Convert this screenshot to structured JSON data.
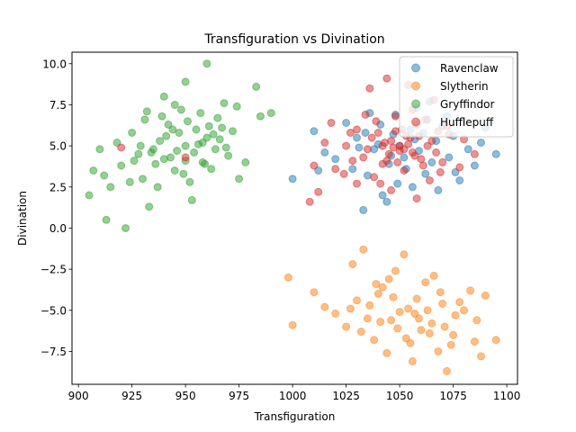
{
  "chart_data": {
    "type": "scatter",
    "title": "Transfiguration vs Divination",
    "xlabel": "Transfiguration",
    "ylabel": "Divination",
    "xlim": [
      897,
      1105
    ],
    "ylim": [
      -9.5,
      10.7
    ],
    "xticks": [
      900,
      925,
      950,
      975,
      1000,
      1025,
      1050,
      1075,
      1100
    ],
    "yticks": [
      -7.5,
      -5.0,
      -2.5,
      0.0,
      2.5,
      5.0,
      7.5,
      10.0
    ],
    "xtick_labels": [
      "900",
      "925",
      "950",
      "975",
      "1000",
      "1025",
      "1050",
      "1075",
      "1100"
    ],
    "ytick_labels": [
      "−7.5",
      "−5.0",
      "−2.5",
      "0.0",
      "2.5",
      "5.0",
      "7.5",
      "10.0"
    ],
    "grid": false,
    "legend_position": "top-right",
    "point_alpha": 0.5,
    "series": [
      {
        "name": "Ravenclaw",
        "color": "#1f77b4",
        "points": [
          [
            1040,
            5.1
          ],
          [
            1052,
            4.3
          ],
          [
            1061,
            5.8
          ],
          [
            1035,
            3.2
          ],
          [
            1070,
            6.2
          ],
          [
            1048,
            6.9
          ],
          [
            1056,
            2.5
          ],
          [
            1082,
            4.8
          ],
          [
            1030,
            5.5
          ],
          [
            1045,
            3.9
          ],
          [
            1065,
            4.0
          ],
          [
            1075,
            5.6
          ],
          [
            1090,
            6.1
          ],
          [
            1015,
            4.6
          ],
          [
            1025,
            6.4
          ],
          [
            1058,
            7.3
          ],
          [
            1068,
            2.3
          ],
          [
            1042,
            2.0
          ],
          [
            1095,
            4.5
          ],
          [
            1000,
            3.0
          ],
          [
            1033,
            1.1
          ],
          [
            1085,
            3.8
          ],
          [
            1010,
            5.9
          ],
          [
            1050,
            5.0
          ],
          [
            1055,
            6.0
          ],
          [
            1062,
            3.3
          ],
          [
            1038,
            4.8
          ],
          [
            1072,
            6.8
          ],
          [
            1047,
            5.7
          ],
          [
            1028,
            3.6
          ],
          [
            1088,
            5.2
          ],
          [
            1036,
            7.0
          ],
          [
            1064,
            7.7
          ],
          [
            1078,
            2.9
          ],
          [
            1020,
            4.2
          ],
          [
            1044,
            1.6
          ],
          [
            1059,
            4.7
          ],
          [
            1067,
            5.3
          ],
          [
            1053,
            3.6
          ],
          [
            1041,
            6.3
          ],
          [
            1073,
            4.3
          ],
          [
            1049,
            2.7
          ],
          [
            1031,
            4.9
          ],
          [
            1057,
            5.4
          ],
          [
            1080,
            6.5
          ],
          [
            1012,
            3.5
          ],
          [
            1046,
            4.4
          ],
          [
            1063,
            6.6
          ],
          [
            1034,
            5.8
          ],
          [
            1076,
            3.4
          ]
        ]
      },
      {
        "name": "Slytherin",
        "color": "#ff7f0e",
        "points": [
          [
            1050,
            -5.1
          ],
          [
            1040,
            -4.0
          ],
          [
            1060,
            -6.2
          ],
          [
            1035,
            -5.5
          ],
          [
            1070,
            -4.6
          ],
          [
            1045,
            -3.1
          ],
          [
            1055,
            -7.0
          ],
          [
            1065,
            -5.8
          ],
          [
            1030,
            -4.4
          ],
          [
            1075,
            -6.5
          ],
          [
            1080,
            -5.0
          ],
          [
            1025,
            -6.0
          ],
          [
            1048,
            -2.6
          ],
          [
            1058,
            -4.3
          ],
          [
            1068,
            -7.5
          ],
          [
            1038,
            -6.8
          ],
          [
            1042,
            -3.6
          ],
          [
            1062,
            -3.3
          ],
          [
            1072,
            -8.7
          ],
          [
            1085,
            -6.9
          ],
          [
            1090,
            -4.1
          ],
          [
            1020,
            -5.2
          ],
          [
            1010,
            -3.9
          ],
          [
            1000,
            -5.9
          ],
          [
            998,
            -3.0
          ],
          [
            1033,
            -1.3
          ],
          [
            1028,
            -2.2
          ],
          [
            1052,
            -1.6
          ],
          [
            1088,
            -7.8
          ],
          [
            1095,
            -6.8
          ],
          [
            1015,
            -4.8
          ],
          [
            1046,
            -5.6
          ],
          [
            1054,
            -4.9
          ],
          [
            1064,
            -6.4
          ],
          [
            1036,
            -4.7
          ],
          [
            1076,
            -5.3
          ],
          [
            1083,
            -3.8
          ],
          [
            1044,
            -7.6
          ],
          [
            1056,
            -8.1
          ],
          [
            1066,
            -2.9
          ],
          [
            1032,
            -6.3
          ],
          [
            1059,
            -5.5
          ],
          [
            1047,
            -4.2
          ],
          [
            1071,
            -6.0
          ],
          [
            1039,
            -3.4
          ],
          [
            1063,
            -5.0
          ],
          [
            1053,
            -6.7
          ],
          [
            1078,
            -4.5
          ],
          [
            1027,
            -4.9
          ],
          [
            1041,
            -5.7
          ],
          [
            1069,
            -3.9
          ],
          [
            1057,
            -5.2
          ],
          [
            1049,
            -6.1
          ],
          [
            1074,
            -7.1
          ],
          [
            1086,
            -5.6
          ]
        ]
      },
      {
        "name": "Gryffindor",
        "color": "#2ca02c",
        "points": [
          [
            950,
            5.0
          ],
          [
            940,
            4.2
          ],
          [
            955,
            6.0
          ],
          [
            945,
            3.5
          ],
          [
            960,
            5.5
          ],
          [
            935,
            4.8
          ],
          [
            965,
            6.7
          ],
          [
            930,
            3.0
          ],
          [
            970,
            4.4
          ],
          [
            925,
            5.8
          ],
          [
            948,
            7.2
          ],
          [
            952,
            2.8
          ],
          [
            958,
            4.0
          ],
          [
            942,
            6.3
          ],
          [
            962,
            3.6
          ],
          [
            938,
            5.3
          ],
          [
            968,
            7.6
          ],
          [
            928,
            4.5
          ],
          [
            972,
            5.9
          ],
          [
            920,
            3.8
          ],
          [
            915,
            2.5
          ],
          [
            910,
            4.8
          ],
          [
            907,
            3.5
          ],
          [
            905,
            2.0
          ],
          [
            913,
            0.5
          ],
          [
            922,
            0.0
          ],
          [
            933,
            1.3
          ],
          [
            960,
            10.0
          ],
          [
            950,
            8.9
          ],
          [
            940,
            8.0
          ],
          [
            983,
            8.6
          ],
          [
            990,
            7.0
          ],
          [
            985,
            6.8
          ],
          [
            978,
            4.0
          ],
          [
            975,
            3.0
          ],
          [
            953,
            1.7
          ],
          [
            946,
            4.7
          ],
          [
            956,
            5.1
          ],
          [
            944,
            6.0
          ],
          [
            964,
            4.8
          ],
          [
            936,
            3.9
          ],
          [
            966,
            5.4
          ],
          [
            931,
            6.6
          ],
          [
            974,
            7.4
          ],
          [
            926,
            4.1
          ],
          [
            949,
            3.3
          ],
          [
            957,
            7.0
          ],
          [
            941,
            5.6
          ],
          [
            961,
            6.2
          ],
          [
            937,
            2.5
          ],
          [
            918,
            5.2
          ],
          [
            912,
            3.2
          ],
          [
            932,
            7.1
          ],
          [
            947,
            5.8
          ],
          [
            954,
            4.6
          ],
          [
            943,
            4.3
          ],
          [
            959,
            3.9
          ],
          [
            939,
            6.8
          ],
          [
            967,
            6.1
          ],
          [
            929,
            5.0
          ],
          [
            951,
            6.5
          ],
          [
            963,
            5.7
          ],
          [
            934,
            4.6
          ],
          [
            969,
            4.9
          ],
          [
            924,
            2.8
          ],
          [
            945,
            7.5
          ],
          [
            958,
            5.2
          ],
          [
            950,
            4.1
          ]
        ]
      },
      {
        "name": "Hufflepuff",
        "color": "#d62728",
        "points": [
          [
            1050,
            5.0
          ],
          [
            1045,
            4.5
          ],
          [
            1055,
            5.5
          ],
          [
            1040,
            5.8
          ],
          [
            1060,
            4.2
          ],
          [
            1035,
            4.8
          ],
          [
            1065,
            5.3
          ],
          [
            1030,
            6.0
          ],
          [
            1070,
            4.0
          ],
          [
            1025,
            5.0
          ],
          [
            1048,
            6.8
          ],
          [
            1052,
            3.5
          ],
          [
            1058,
            6.3
          ],
          [
            1042,
            3.9
          ],
          [
            1062,
            6.6
          ],
          [
            1038,
            3.1
          ],
          [
            1068,
            5.9
          ],
          [
            1028,
            4.1
          ],
          [
            1072,
            6.2
          ],
          [
            1020,
            3.6
          ],
          [
            1015,
            5.2
          ],
          [
            1010,
            3.8
          ],
          [
            1012,
            2.2
          ],
          [
            1008,
            1.6
          ],
          [
            1036,
            8.5
          ],
          [
            1044,
            9.1
          ],
          [
            1054,
            8.7
          ],
          [
            1066,
            7.8
          ],
          [
            1078,
            3.7
          ],
          [
            1080,
            5.4
          ],
          [
            1085,
            4.5
          ],
          [
            1058,
            1.8
          ],
          [
            1046,
            2.3
          ],
          [
            1030,
            2.7
          ],
          [
            1018,
            6.4
          ],
          [
            1047,
            4.9
          ],
          [
            1053,
            5.6
          ],
          [
            1057,
            4.4
          ],
          [
            1043,
            5.2
          ],
          [
            1063,
            5.0
          ],
          [
            1037,
            5.5
          ],
          [
            1067,
            4.6
          ],
          [
            1033,
            4.3
          ],
          [
            1073,
            5.7
          ],
          [
            1027,
            5.8
          ],
          [
            1049,
            4.0
          ],
          [
            1051,
            6.0
          ],
          [
            1061,
            3.8
          ],
          [
            1039,
            6.5
          ],
          [
            1069,
            3.4
          ],
          [
            1034,
            6.9
          ],
          [
            1056,
            7.2
          ],
          [
            1041,
            2.7
          ],
          [
            1064,
            2.9
          ],
          [
            1024,
            3.3
          ],
          [
            920,
            4.9
          ],
          [
            950,
            4.3
          ],
          [
            1050,
            4.7
          ],
          [
            1054,
            5.1
          ],
          [
            1046,
            5.3
          ],
          [
            1059,
            5.6
          ],
          [
            1044,
            4.1
          ],
          [
            1052,
            4.8
          ],
          [
            1048,
            5.9
          ],
          [
            1056,
            4.6
          ],
          [
            1042,
            5.0
          ]
        ]
      }
    ]
  }
}
